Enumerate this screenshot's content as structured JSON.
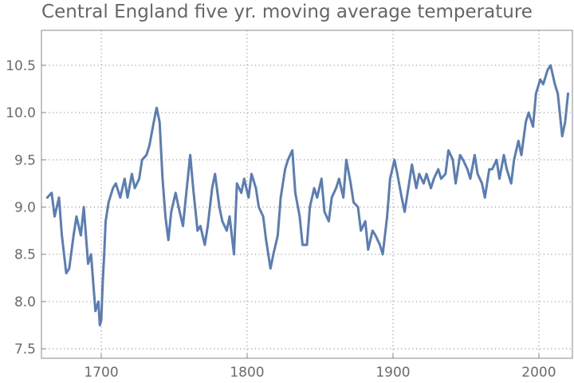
{
  "chart_data": {
    "type": "line",
    "title": "Central England five yr. moving average temperature",
    "xlabel": "",
    "ylabel": "",
    "xlim": [
      1659,
      2023
    ],
    "ylim": [
      7.4,
      10.87
    ],
    "x_ticks": [
      1700,
      1800,
      1900,
      2000
    ],
    "y_ticks": [
      7.5,
      8.0,
      8.5,
      9.0,
      9.5,
      10.0,
      10.5
    ],
    "x_tick_labels": [
      "1700",
      "1800",
      "1900",
      "2000"
    ],
    "y_tick_labels": [
      "7.5",
      "8.0",
      "8.5",
      "9.0",
      "9.5",
      "10.0",
      "10.5"
    ],
    "grid": true,
    "line_color": "#5a7db5",
    "series": [
      {
        "x": [
          1663,
          1666,
          1668,
          1671,
          1673,
          1676,
          1678,
          1681,
          1683,
          1686,
          1688,
          1691,
          1693,
          1696,
          1698,
          1699,
          1700,
          1701,
          1702,
          1703,
          1705,
          1708,
          1710,
          1713,
          1716,
          1718,
          1721,
          1723,
          1726,
          1728,
          1731,
          1733,
          1736,
          1738,
          1740,
          1742,
          1744,
          1746,
          1748,
          1751,
          1753,
          1756,
          1758,
          1761,
          1763,
          1766,
          1768,
          1771,
          1773,
          1776,
          1778,
          1781,
          1783,
          1786,
          1788,
          1791,
          1793,
          1796,
          1798,
          1801,
          1803,
          1806,
          1808,
          1811,
          1813,
          1816,
          1818,
          1821,
          1823,
          1826,
          1828,
          1831,
          1833,
          1836,
          1838,
          1841,
          1843,
          1846,
          1848,
          1851,
          1853,
          1856,
          1858,
          1861,
          1863,
          1866,
          1868,
          1871,
          1873,
          1876,
          1878,
          1881,
          1883,
          1886,
          1888,
          1891,
          1893,
          1896,
          1898,
          1901,
          1903,
          1906,
          1908,
          1911,
          1913,
          1916,
          1918,
          1921,
          1923,
          1926,
          1928,
          1931,
          1933,
          1936,
          1938,
          1941,
          1943,
          1946,
          1948,
          1951,
          1953,
          1956,
          1958,
          1961,
          1963,
          1966,
          1968,
          1971,
          1973,
          1976,
          1978,
          1981,
          1983,
          1986,
          1988,
          1991,
          1993,
          1996,
          1998,
          2001,
          2003,
          2006,
          2008,
          2011,
          2013,
          2016,
          2018,
          2020
        ],
        "y": [
          9.1,
          9.15,
          8.9,
          9.1,
          8.7,
          8.3,
          8.35,
          8.7,
          8.9,
          8.7,
          9.0,
          8.4,
          8.5,
          7.9,
          8.0,
          7.75,
          7.8,
          8.2,
          8.5,
          8.85,
          9.05,
          9.2,
          9.25,
          9.1,
          9.3,
          9.1,
          9.35,
          9.2,
          9.3,
          9.5,
          9.55,
          9.65,
          9.9,
          10.05,
          9.9,
          9.3,
          8.9,
          8.65,
          8.95,
          9.15,
          9.0,
          8.8,
          9.1,
          9.55,
          9.2,
          8.75,
          8.8,
          8.6,
          8.8,
          9.2,
          9.35,
          9.0,
          8.85,
          8.75,
          8.9,
          8.5,
          9.25,
          9.15,
          9.3,
          9.1,
          9.35,
          9.2,
          9.0,
          8.9,
          8.65,
          8.35,
          8.5,
          8.7,
          9.1,
          9.4,
          9.5,
          9.6,
          9.15,
          8.9,
          8.6,
          8.6,
          9.0,
          9.2,
          9.1,
          9.3,
          8.95,
          8.85,
          9.1,
          9.2,
          9.3,
          9.1,
          9.5,
          9.25,
          9.05,
          9.0,
          8.75,
          8.85,
          8.55,
          8.75,
          8.7,
          8.6,
          8.5,
          8.9,
          9.3,
          9.5,
          9.35,
          9.1,
          8.95,
          9.25,
          9.45,
          9.2,
          9.35,
          9.25,
          9.35,
          9.2,
          9.3,
          9.4,
          9.3,
          9.35,
          9.6,
          9.5,
          9.25,
          9.55,
          9.5,
          9.4,
          9.3,
          9.55,
          9.35,
          9.25,
          9.1,
          9.4,
          9.4,
          9.5,
          9.3,
          9.55,
          9.4,
          9.25,
          9.5,
          9.7,
          9.55,
          9.9,
          10.0,
          9.85,
          10.2,
          10.35,
          10.3,
          10.45,
          10.5,
          10.3,
          10.2,
          9.75,
          9.9,
          10.2
        ]
      }
    ]
  }
}
